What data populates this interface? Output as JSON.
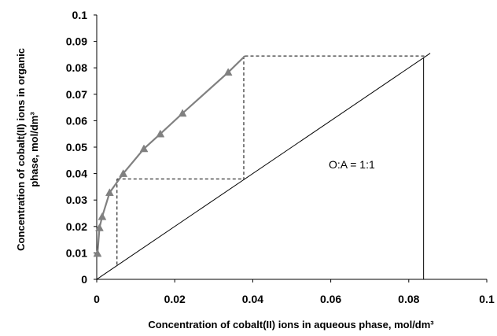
{
  "chart_data": {
    "type": "line",
    "title": "",
    "xlabel": "Concentration of cobalt(II) ions in aqueous phase, mol/dm³",
    "ylabel_line1": "Concentration of cobalt(II) ions  in organic",
    "ylabel_line2": "phase, mol/dm³",
    "xlim": [
      0,
      0.1
    ],
    "ylim": [
      0,
      0.1
    ],
    "x_ticks": [
      "0",
      "0.02",
      "0.04",
      "0.06",
      "0.08",
      "0.1"
    ],
    "y_ticks": [
      "0",
      "0.01",
      "0.02",
      "0.03",
      "0.04",
      "0.05",
      "0.06",
      "0.07",
      "0.08",
      "0.09",
      "0.1"
    ],
    "grid": false,
    "annotation": "O:A  = 1:1",
    "series": [
      {
        "kind": "equilibrium curve",
        "color": "#808080",
        "marker": "triangle",
        "points": [
          [
            0.0002,
            0.0098
          ],
          [
            0.0007,
            0.0195
          ],
          [
            0.0014,
            0.0237
          ],
          [
            0.0033,
            0.0328
          ],
          [
            0.0068,
            0.04
          ],
          [
            0.0121,
            0.0494
          ],
          [
            0.0163,
            0.055
          ],
          [
            0.022,
            0.0628
          ],
          [
            0.0337,
            0.0783
          ]
        ],
        "line_end": [
          0.038,
          0.0845
        ]
      },
      {
        "kind": "operating line",
        "color": "#000000",
        "points": [
          [
            0,
            0
          ],
          [
            0.0855,
            0.0855
          ]
        ]
      }
    ],
    "mccabe_thiele_steps": [
      [
        0.0377,
        0.0845,
        0.0838
      ],
      [
        0.0052,
        0.0383,
        0.0378
      ]
    ],
    "vertical_line_x": 0.0838
  }
}
